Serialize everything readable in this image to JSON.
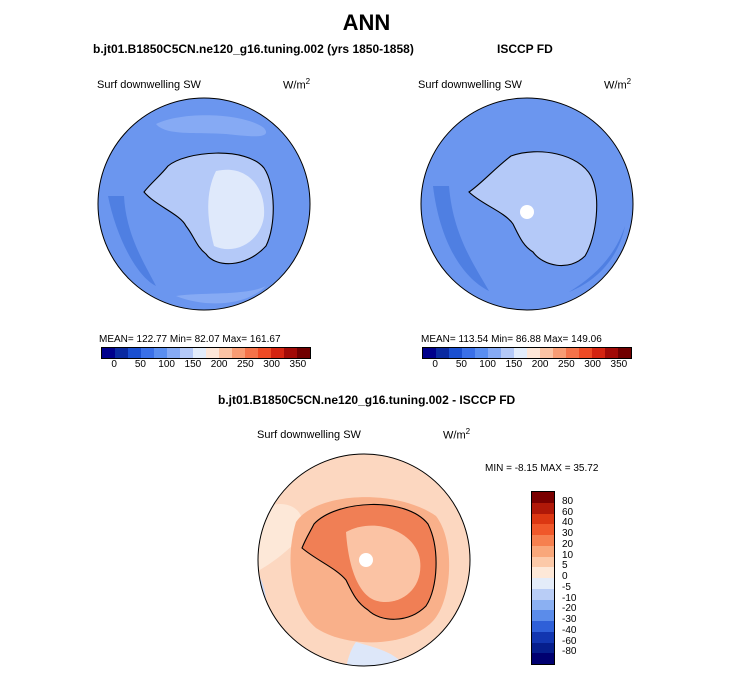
{
  "page": {
    "main_title": "ANN",
    "model_title": "b.jt01.B1850C5CN.ne120_g16.tuning.002 (yrs 1850-1858)",
    "obs_title": "ISCCP FD",
    "diff_title": "b.jt01.B1850C5CN.ne120_g16.tuning.002 - ISCCP FD"
  },
  "panels": {
    "model": {
      "field": "Surf downwelling SW",
      "units_base": "W/m",
      "units_exp": "2",
      "stats": "MEAN= 122.77   Min=   82.07   Max= 161.67",
      "mean": 122.77,
      "min": 82.07,
      "max": 161.67
    },
    "obs": {
      "field": "Surf downwelling SW",
      "units_base": "W/m",
      "units_exp": "2",
      "stats": "MEAN= 113.54   Min=   86.88   Max= 149.06",
      "mean": 113.54,
      "min": 86.88,
      "max": 149.06
    },
    "diff": {
      "field": "Surf downwelling SW",
      "units_base": "W/m",
      "units_exp": "2",
      "stats": "MIN =   -8.15 MAX =   35.72",
      "min": -8.15,
      "max": 35.72
    }
  },
  "colorbar_abs": {
    "tick_labels": [
      "0",
      "50",
      "100",
      "150",
      "200",
      "250",
      "300",
      "350"
    ],
    "colors": [
      "#00008b",
      "#0a2aa0",
      "#1a4fd0",
      "#3a70e8",
      "#5a8ef0",
      "#86aaf4",
      "#b4c9f8",
      "#e2ecfb",
      "#fde6d8",
      "#fbc3a4",
      "#f89c74",
      "#f4734a",
      "#ee4b25",
      "#d42410",
      "#a10a06",
      "#700000"
    ]
  },
  "colorbar_diff": {
    "tick_labels": [
      "80",
      "60",
      "40",
      "30",
      "20",
      "10",
      "5",
      "0",
      "-5",
      "-10",
      "-20",
      "-30",
      "-40",
      "-60",
      "-80"
    ],
    "colors": [
      "#7a0000",
      "#b01808",
      "#dc3712",
      "#f0582a",
      "#f6804f",
      "#f9a77a",
      "#fcc9a8",
      "#fde8d8",
      "#e4ecf9",
      "#b9cdf6",
      "#8bb0f2",
      "#5b8cea",
      "#2f60d8",
      "#1236b0",
      "#061e8c",
      "#000070"
    ]
  }
}
